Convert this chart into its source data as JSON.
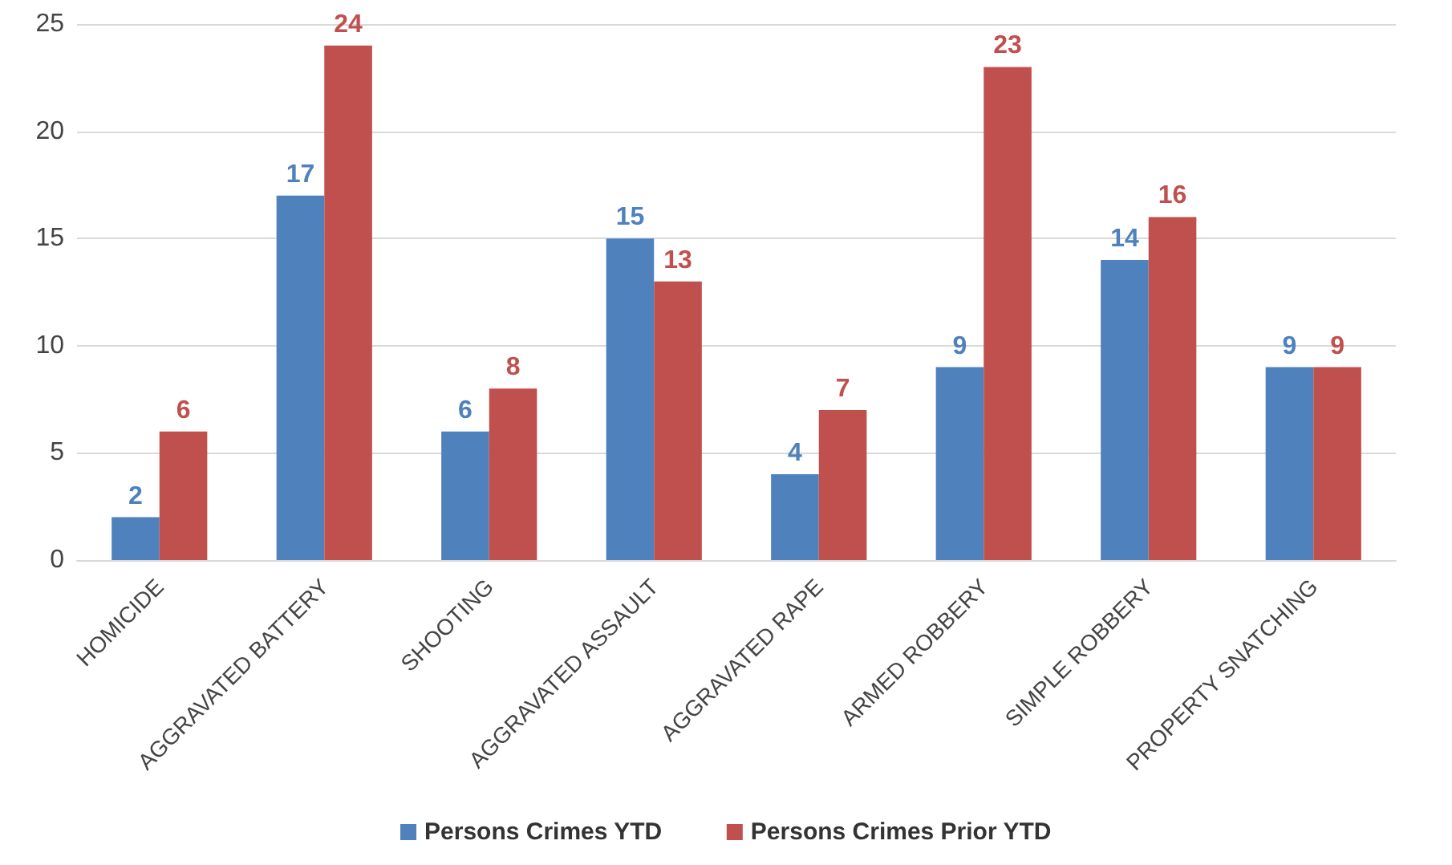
{
  "chart_data": {
    "type": "bar",
    "categories": [
      "HOMICIDE",
      "AGGRAVATED BATTERY",
      "SHOOTING",
      "AGGRAVATED ASSAULT",
      "AGGRAVATED RAPE",
      "ARMED ROBBERY",
      "SIMPLE ROBBERY",
      "PROPERTY SNATCHING"
    ],
    "series": [
      {
        "name": "Persons Crimes YTD",
        "color": "#4f81bd",
        "values": [
          2,
          17,
          6,
          15,
          4,
          9,
          14,
          9
        ]
      },
      {
        "name": "Persons Crimes Prior YTD",
        "color": "#c0504d",
        "values": [
          6,
          24,
          8,
          13,
          7,
          23,
          16,
          9
        ]
      }
    ],
    "ylim": [
      0,
      25
    ],
    "yticks": [
      0,
      5,
      10,
      15,
      20,
      25
    ],
    "grid": "y",
    "legend": "bottom",
    "data_labels": true
  }
}
